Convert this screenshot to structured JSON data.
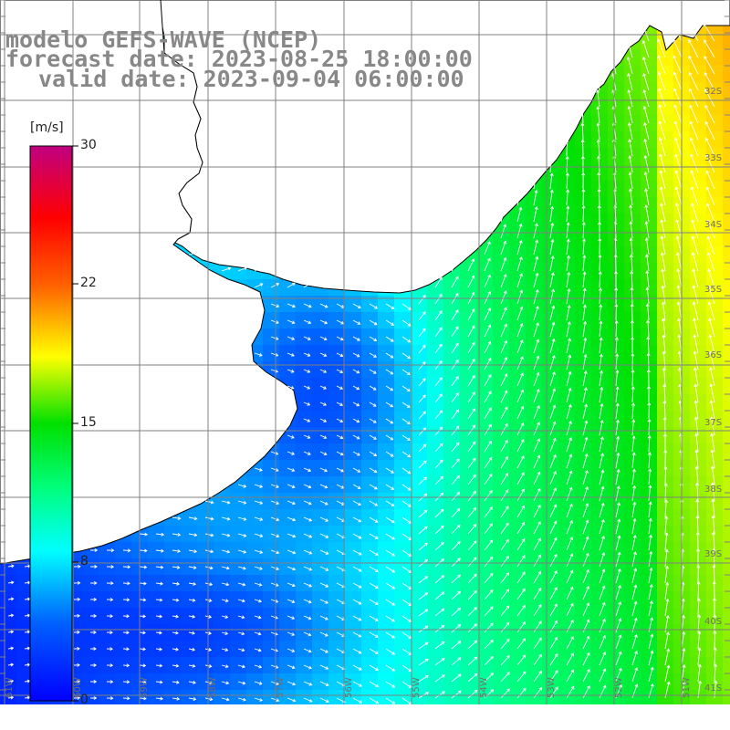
{
  "title": {
    "line1": "modelo GEFS-WAVE (NCEP)",
    "line2": "forecast date: 2023-08-25 18:00:00",
    "line3": "valid date: 2023-09-04 06:00:00"
  },
  "colorbar": {
    "unit": "[m/s]",
    "ticks": [
      "30",
      "22",
      "15",
      "8",
      "0"
    ],
    "colors": [
      "#0000ff",
      "#0080ff",
      "#00d8ff",
      "#00ff60",
      "#00d800",
      "#ffff00",
      "#ff6000",
      "#ff0000",
      "#e00040",
      "#c00080"
    ]
  },
  "map": {
    "ocean_color": "#00d0ff",
    "land_color": "#ffffff",
    "coastline_color": "#000000",
    "grid_color": "#888888",
    "lat_labels": [
      "32S",
      "33S",
      "34S",
      "35S",
      "36S",
      "37S",
      "38S",
      "39S",
      "40S",
      "41S"
    ],
    "lon_labels": [
      "61W",
      "60W",
      "59W",
      "58W",
      "57W",
      "56W",
      "55W",
      "54W",
      "53W",
      "52W",
      "51W"
    ]
  }
}
